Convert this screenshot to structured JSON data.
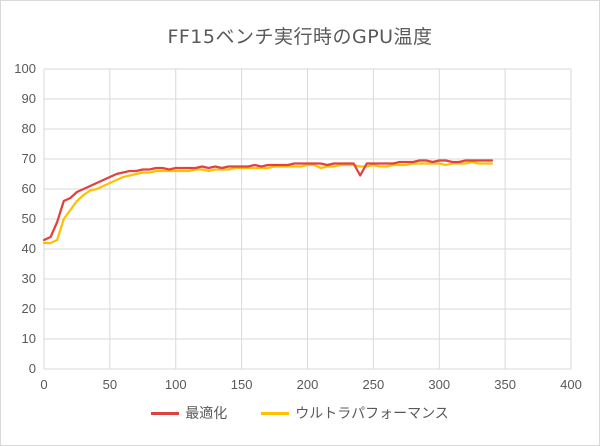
{
  "chart_data": {
    "type": "line",
    "title": "FF15ベンチ実行時のGPU温度",
    "xlabel": "",
    "ylabel": "",
    "xlim": [
      0,
      400
    ],
    "ylim": [
      0,
      100
    ],
    "x_ticks": [
      "0",
      "50",
      "100",
      "150",
      "200",
      "250",
      "300",
      "350",
      "400"
    ],
    "y_ticks": [
      "0",
      "10",
      "20",
      "30",
      "40",
      "50",
      "60",
      "70",
      "80",
      "90",
      "100"
    ],
    "grid": true,
    "legend_position": "bottom",
    "x": [
      0,
      5,
      10,
      15,
      20,
      25,
      30,
      35,
      40,
      45,
      50,
      55,
      60,
      65,
      70,
      75,
      80,
      85,
      90,
      95,
      100,
      105,
      110,
      115,
      120,
      125,
      130,
      135,
      140,
      145,
      150,
      155,
      160,
      165,
      170,
      175,
      180,
      185,
      190,
      195,
      200,
      205,
      210,
      215,
      220,
      225,
      230,
      235,
      240,
      245,
      250,
      255,
      260,
      265,
      270,
      275,
      280,
      285,
      290,
      295,
      300,
      305,
      310,
      315,
      320,
      325,
      330,
      335,
      340
    ],
    "series": [
      {
        "name": "最適化",
        "color": "#e0423f",
        "values": [
          43,
          44,
          49,
          56,
          57,
          59,
          60,
          61,
          62,
          63,
          64,
          65,
          65.5,
          66,
          66,
          66.5,
          66.5,
          67,
          67,
          66.5,
          67,
          67,
          67,
          67,
          67.5,
          67,
          67.5,
          67,
          67.5,
          67.5,
          67.5,
          67.5,
          68,
          67.5,
          68,
          68,
          68,
          68,
          68.5,
          68.5,
          68.5,
          68.5,
          68.5,
          68,
          68.5,
          68.5,
          68.5,
          68.5,
          64.5,
          68.5,
          68.5,
          68.5,
          68.5,
          68.5,
          69,
          69,
          69,
          69.5,
          69.5,
          69,
          69.5,
          69.5,
          69,
          69,
          69.5,
          69.5,
          69.5,
          69.5,
          69.5
        ]
      },
      {
        "name": "ウルトラパフォーマンス",
        "color": "#ffc000",
        "values": [
          42,
          42,
          43,
          50,
          53,
          56,
          58,
          59.5,
          60,
          61,
          62,
          63,
          64,
          64.5,
          65,
          65.5,
          65.5,
          66,
          66,
          66,
          66,
          66,
          66,
          66.5,
          66.5,
          66,
          66.5,
          66.5,
          66.5,
          67,
          67,
          67,
          67,
          67,
          67,
          67.5,
          67.5,
          67.5,
          67.5,
          67.5,
          68,
          68,
          67,
          67.5,
          67.5,
          68,
          68,
          68,
          67.5,
          67.5,
          68,
          67.5,
          67.5,
          68,
          68,
          68,
          68.5,
          68.5,
          68.5,
          68.5,
          68.5,
          68,
          68.5,
          68.5,
          68.5,
          69,
          68.5,
          68.5,
          68.5
        ]
      }
    ]
  }
}
